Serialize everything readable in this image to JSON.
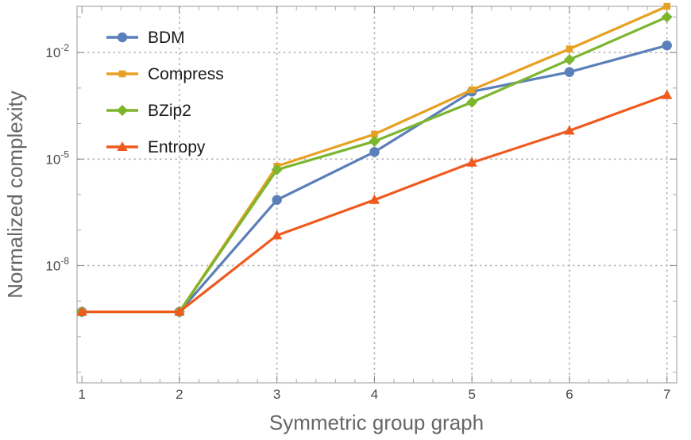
{
  "chart_data": {
    "type": "line",
    "title": "",
    "xlabel": "Symmetric group graph",
    "ylabel": "Normalized complexity",
    "yscale": "log",
    "xlim": [
      0.95,
      7.1
    ],
    "ylim_log10": [
      -11.3,
      -0.7
    ],
    "x": [
      1,
      2,
      3,
      4,
      5,
      6,
      7
    ],
    "x_ticks": [
      "1",
      "2",
      "3",
      "4",
      "5",
      "6",
      "7"
    ],
    "y_ticks": [
      {
        "base": "10",
        "exp": "-8",
        "log10": -8
      },
      {
        "base": "10",
        "exp": "-5",
        "log10": -5
      },
      {
        "base": "10",
        "exp": "-2",
        "log10": -2
      }
    ],
    "grid": true,
    "legend_position": "top-left",
    "series": [
      {
        "name": "BDM",
        "color": "#5b7fb8",
        "marker": "circle",
        "log10_values": [
          -9.3,
          -9.3,
          -6.15,
          -4.8,
          -3.1,
          -2.55,
          -1.8
        ]
      },
      {
        "name": "Compress",
        "color": "#e8a020",
        "marker": "square",
        "log10_values": [
          -9.3,
          -9.3,
          -5.2,
          -4.3,
          -3.05,
          -1.9,
          -0.7
        ]
      },
      {
        "name": "BZip2",
        "color": "#7cb52e",
        "marker": "diamond",
        "log10_values": [
          -9.3,
          -9.3,
          -5.3,
          -4.5,
          -3.4,
          -2.2,
          -1.0
        ]
      },
      {
        "name": "Entropy",
        "color": "#f05a1e",
        "marker": "triangle",
        "log10_values": [
          -9.3,
          -9.3,
          -7.15,
          -6.15,
          -5.1,
          -4.2,
          -3.2
        ]
      }
    ]
  }
}
